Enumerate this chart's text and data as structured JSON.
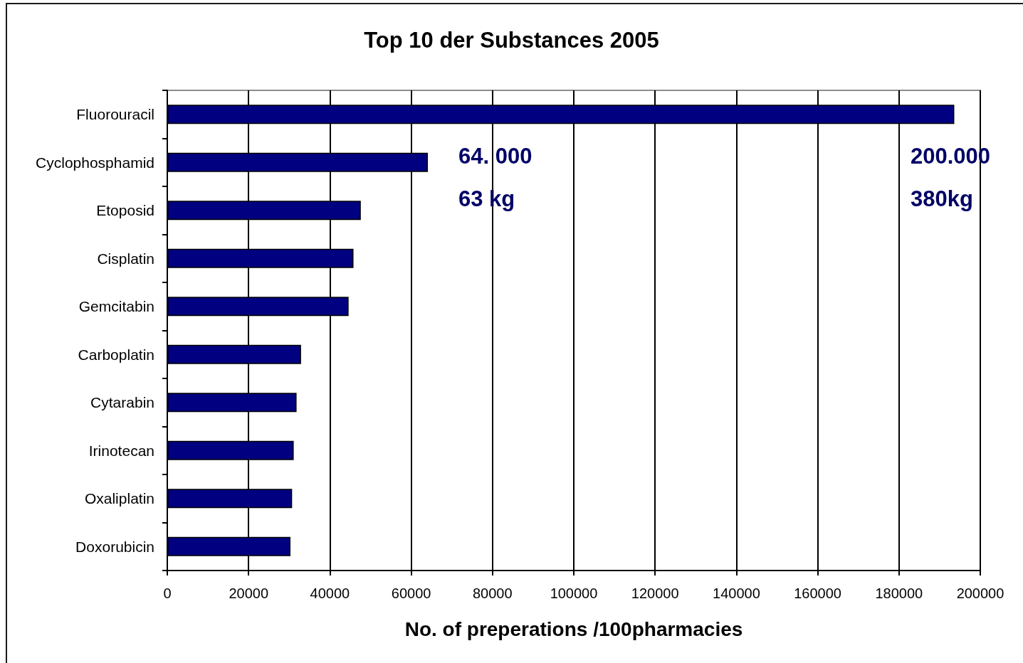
{
  "chart_data": {
    "type": "bar",
    "orientation": "horizontal",
    "title": "Top 10 der Substances 2005",
    "xlabel": "No. of preperations /100pharmacies",
    "categories": [
      "Fluorouracil",
      "Cyclophosphamid",
      "Etoposid",
      "Cisplatin",
      "Gemcitabin",
      "Carboplatin",
      "Cytarabin",
      "Irinotecan",
      "Oxaliplatin",
      "Doxorubicin"
    ],
    "values": [
      193600,
      64100,
      47600,
      45800,
      44600,
      32900,
      31800,
      31100,
      30700,
      30300
    ],
    "color": "#000080",
    "xlim": [
      0,
      200000
    ],
    "xticks": [
      0,
      20000,
      40000,
      60000,
      80000,
      100000,
      120000,
      140000,
      160000,
      180000,
      200000
    ],
    "grid": "x",
    "annotations": [
      "64. 000",
      "63 kg",
      "200.000",
      "380kg"
    ]
  }
}
